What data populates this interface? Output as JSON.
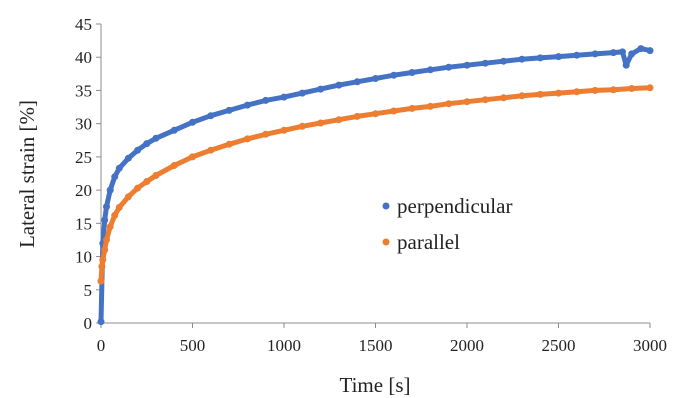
{
  "chart_data": {
    "type": "scatter",
    "xlabel": "Time [s]",
    "ylabel": "Lateral strain [%]",
    "xlim": [
      0,
      3000
    ],
    "ylim": [
      0,
      45
    ],
    "x_ticks": [
      0,
      500,
      1000,
      1500,
      2000,
      2500,
      3000
    ],
    "y_ticks": [
      0,
      5,
      10,
      15,
      20,
      25,
      30,
      35,
      40,
      45
    ],
    "grid": false,
    "legend_position": "right-center",
    "series": [
      {
        "name": "perpendicular",
        "color": "#4472C4",
        "x": [
          0,
          10,
          20,
          30,
          50,
          75,
          100,
          150,
          200,
          250,
          300,
          400,
          500,
          600,
          700,
          800,
          900,
          1000,
          1100,
          1200,
          1300,
          1400,
          1500,
          1600,
          1700,
          1800,
          1900,
          2000,
          2100,
          2200,
          2300,
          2400,
          2500,
          2600,
          2700,
          2800,
          2850,
          2870,
          2900,
          2950,
          3000
        ],
        "y": [
          0.2,
          12,
          15.5,
          17.5,
          20,
          22,
          23.3,
          24.8,
          26,
          27,
          27.8,
          29,
          30.2,
          31.2,
          32,
          32.8,
          33.5,
          34,
          34.6,
          35.2,
          35.8,
          36.3,
          36.8,
          37.3,
          37.7,
          38.1,
          38.5,
          38.8,
          39.1,
          39.4,
          39.7,
          39.9,
          40.1,
          40.3,
          40.5,
          40.7,
          40.8,
          38.8,
          40.5,
          41.3,
          41
        ]
      },
      {
        "name": "parallel",
        "color": "#ED7D31",
        "x": [
          0,
          5,
          10,
          20,
          30,
          50,
          75,
          100,
          150,
          200,
          250,
          300,
          400,
          500,
          600,
          700,
          800,
          900,
          1000,
          1100,
          1200,
          1300,
          1400,
          1500,
          1600,
          1700,
          1800,
          1900,
          2000,
          2100,
          2200,
          2300,
          2400,
          2500,
          2600,
          2700,
          2800,
          2900,
          3000
        ],
        "y": [
          6.3,
          8.5,
          9.5,
          11,
          12.5,
          14.5,
          16.2,
          17.4,
          19,
          20.3,
          21.3,
          22.2,
          23.7,
          25,
          26,
          26.9,
          27.7,
          28.4,
          29,
          29.6,
          30.1,
          30.6,
          31.1,
          31.5,
          31.9,
          32.3,
          32.6,
          33,
          33.3,
          33.6,
          33.9,
          34.2,
          34.4,
          34.6,
          34.8,
          35,
          35.1,
          35.3,
          35.4
        ]
      }
    ]
  }
}
